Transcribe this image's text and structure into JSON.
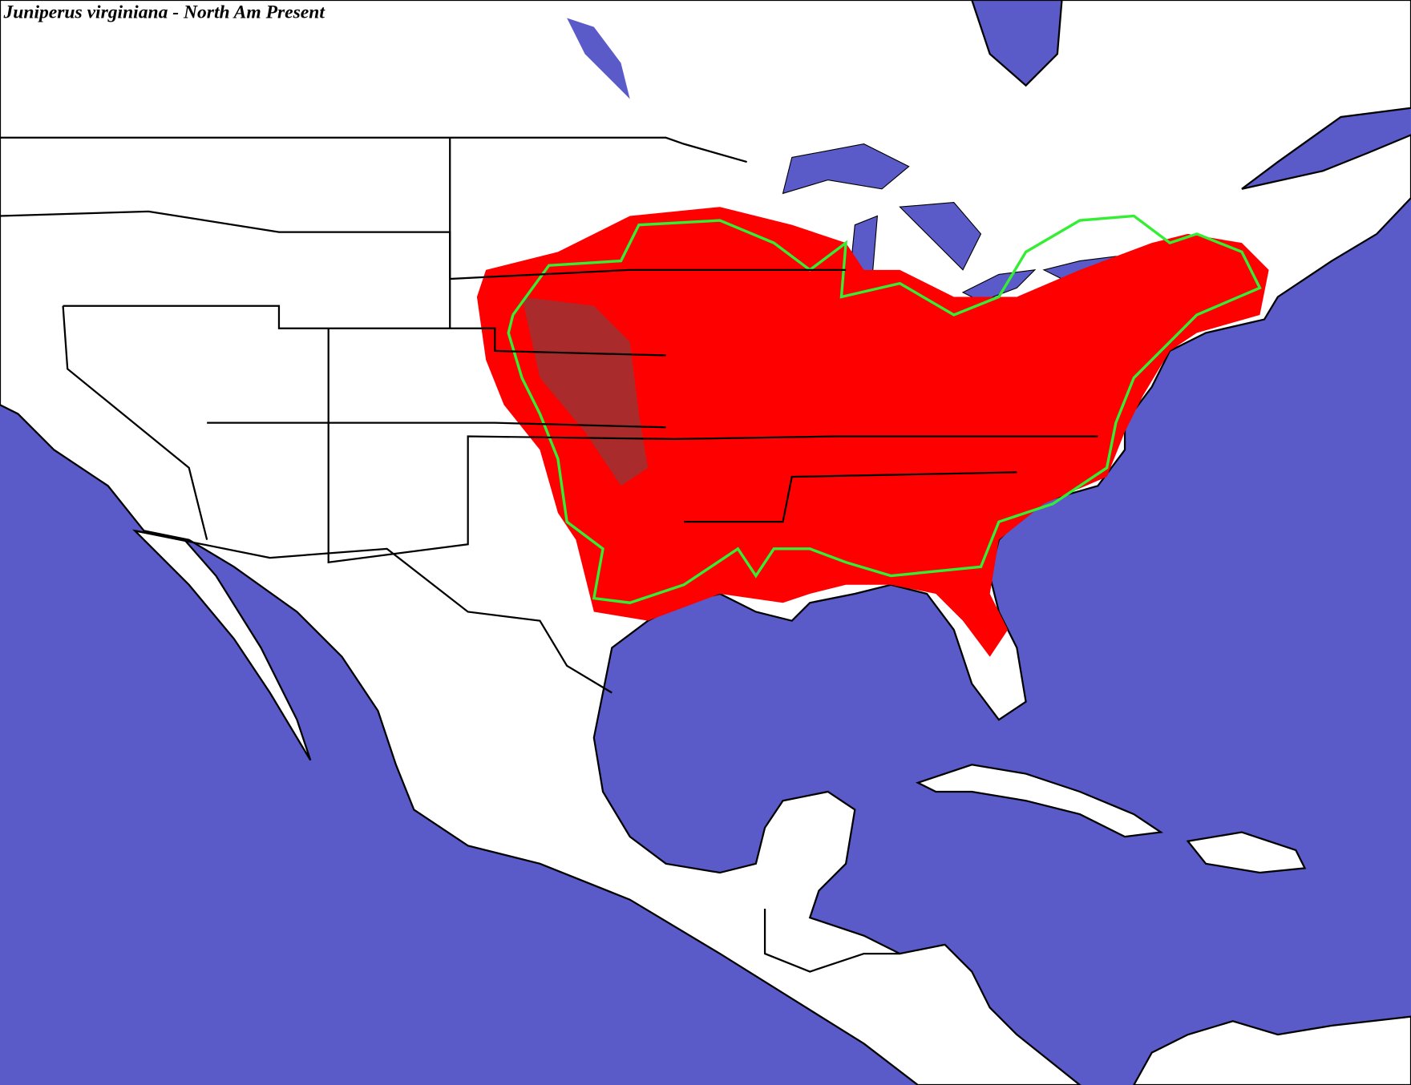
{
  "title": "Juniperus virginiana - North Am Present"
}
